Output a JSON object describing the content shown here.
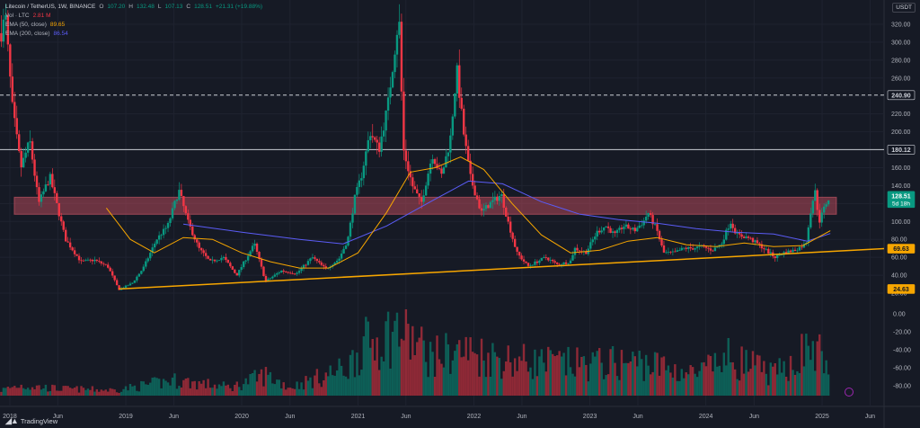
{
  "legend": {
    "title": "Litecoin / TetherUS, 1W, BINANCE",
    "o_key": "O",
    "o_val": "107.20",
    "h_key": "H",
    "h_val": "132.48",
    "l_key": "L",
    "l_val": "107.13",
    "c_key": "C",
    "c_val": "128.51",
    "change": "+21.31 (+19.88%)",
    "vol_label": "Vol · LTC",
    "vol_val": "2.81 M",
    "ema50_label": "EMA (50, close)",
    "ema50_val": "89.65",
    "ema200_label": "EMA (200, close)",
    "ema200_val": "86.54"
  },
  "currency": "USDT",
  "branding": {
    "logo": "TradingView"
  },
  "colors": {
    "background": "#161a25",
    "up": "#089981",
    "down": "#f23645",
    "ema50": "#f7a600",
    "ema200": "#5b5cf6",
    "trendline": "#f7a600",
    "zone": "#b2485a",
    "grid": "#1f2330",
    "axis_text": "#b2b5be"
  },
  "chart_data": {
    "type": "candlestick",
    "symbol": "LTCUSDT",
    "interval": "1W",
    "price_axis": {
      "ticks": [
        320,
        300,
        280,
        260,
        240,
        220,
        200,
        180,
        160,
        140,
        120,
        100,
        80,
        60,
        40,
        20
      ],
      "tick_labels": [
        "320.00",
        "300.00",
        "280.00",
        "260.00",
        "240.00",
        "220.00",
        "200.00",
        "180.00",
        "160.00",
        "140.00",
        "120.00",
        "100.00",
        "80.00",
        "60.00",
        "40.00",
        "20.00"
      ],
      "range": [
        10,
        335
      ],
      "labels": [
        {
          "value": 240.9,
          "text": "240.90",
          "style": "dark"
        },
        {
          "value": 180.12,
          "text": "180.12",
          "style": "dark"
        },
        {
          "value": 128.51,
          "text": "128.51",
          "sub": "5d 18h",
          "style": "green"
        },
        {
          "value": 69.63,
          "text": "69.63",
          "style": "orange"
        },
        {
          "value": 24.63,
          "text": "24.63",
          "style": "orange"
        }
      ]
    },
    "volume_axis": {
      "ticks": [
        0,
        -20,
        -40,
        -60,
        -80
      ],
      "tick_labels": [
        "0.00",
        "-20.00",
        "-40.00",
        "-60.00",
        "-80.00"
      ],
      "note": "volume panel scale as printed"
    },
    "time_axis": {
      "labels": [
        "2018",
        "Jun",
        "2019",
        "Jun",
        "2020",
        "Jun",
        "2021",
        "Jun",
        "2022",
        "Jun",
        "2023",
        "Jun",
        "2024",
        "Jun",
        "2025",
        "Jun"
      ],
      "dates": [
        "2018-01-01",
        "2018-06-01",
        "2019-01-01",
        "2019-06-01",
        "2020-01-01",
        "2020-06-01",
        "2021-01-01",
        "2021-06-01",
        "2022-01-01",
        "2022-06-01",
        "2023-01-01",
        "2023-06-01",
        "2024-01-01",
        "2024-06-01",
        "2025-01-01",
        "2025-06-01"
      ],
      "range": [
        "2017-12-01",
        "2025-07-15"
      ]
    },
    "horizontal_lines": [
      {
        "value": 240.9,
        "style": "dashed"
      },
      {
        "value": 180.12,
        "style": "solid"
      }
    ],
    "resistance_zone": {
      "from": 108,
      "to": 127,
      "start": "2018-01-15",
      "end": "2025-02-15"
    },
    "trendline": {
      "from": {
        "date": "2018-12-10",
        "value": 24.63
      },
      "to": {
        "date": "2025-02-15",
        "value": 69.63
      }
    },
    "price_path": [
      [
        "2017-12-05",
        310
      ],
      [
        "2017-12-18",
        330
      ],
      [
        "2018-01-08",
        230
      ],
      [
        "2018-02-05",
        160
      ],
      [
        "2018-03-05",
        190
      ],
      [
        "2018-04-02",
        120
      ],
      [
        "2018-05-07",
        150
      ],
      [
        "2018-06-25",
        80
      ],
      [
        "2018-08-13",
        55
      ],
      [
        "2018-09-24",
        57
      ],
      [
        "2018-11-05",
        50
      ],
      [
        "2018-12-10",
        24
      ],
      [
        "2019-01-21",
        31
      ],
      [
        "2019-02-25",
        48
      ],
      [
        "2019-04-08",
        80
      ],
      [
        "2019-05-13",
        95
      ],
      [
        "2019-06-17",
        135
      ],
      [
        "2019-07-15",
        100
      ],
      [
        "2019-08-19",
        70
      ],
      [
        "2019-09-23",
        55
      ],
      [
        "2019-11-04",
        60
      ],
      [
        "2019-12-16",
        40
      ],
      [
        "2020-02-10",
        75
      ],
      [
        "2020-03-16",
        33
      ],
      [
        "2020-05-04",
        45
      ],
      [
        "2020-06-22",
        42
      ],
      [
        "2020-08-10",
        60
      ],
      [
        "2020-09-21",
        47
      ],
      [
        "2020-11-02",
        58
      ],
      [
        "2020-11-30",
        80
      ],
      [
        "2020-12-21",
        125
      ],
      [
        "2021-01-11",
        150
      ],
      [
        "2021-02-08",
        200
      ],
      [
        "2021-03-08",
        180
      ],
      [
        "2021-04-05",
        230
      ],
      [
        "2021-05-10",
        330
      ],
      [
        "2021-05-24",
        180
      ],
      [
        "2021-06-21",
        140
      ],
      [
        "2021-07-19",
        120
      ],
      [
        "2021-08-23",
        175
      ],
      [
        "2021-09-20",
        150
      ],
      [
        "2021-10-18",
        190
      ],
      [
        "2021-11-08",
        270
      ],
      [
        "2021-11-29",
        200
      ],
      [
        "2021-12-20",
        150
      ],
      [
        "2022-01-24",
        110
      ],
      [
        "2022-02-21",
        120
      ],
      [
        "2022-03-28",
        130
      ],
      [
        "2022-04-18",
        100
      ],
      [
        "2022-05-16",
        65
      ],
      [
        "2022-06-20",
        50
      ],
      [
        "2022-07-18",
        55
      ],
      [
        "2022-08-15",
        60
      ],
      [
        "2022-09-19",
        52
      ],
      [
        "2022-10-31",
        55
      ],
      [
        "2022-11-14",
        70
      ],
      [
        "2022-12-19",
        65
      ],
      [
        "2023-01-23",
        88
      ],
      [
        "2023-02-20",
        95
      ],
      [
        "2023-03-20",
        85
      ],
      [
        "2023-04-17",
        95
      ],
      [
        "2023-05-22",
        90
      ],
      [
        "2023-06-19",
        100
      ],
      [
        "2023-07-03",
        110
      ],
      [
        "2023-07-31",
        90
      ],
      [
        "2023-08-21",
        65
      ],
      [
        "2023-09-25",
        65
      ],
      [
        "2023-10-23",
        70
      ],
      [
        "2023-11-20",
        70
      ],
      [
        "2023-12-18",
        72
      ],
      [
        "2024-01-22",
        68
      ],
      [
        "2024-02-19",
        75
      ],
      [
        "2024-03-18",
        100
      ],
      [
        "2024-04-08",
        85
      ],
      [
        "2024-05-13",
        82
      ],
      [
        "2024-06-24",
        72
      ],
      [
        "2024-08-05",
        60
      ],
      [
        "2024-09-02",
        65
      ],
      [
        "2024-10-07",
        68
      ],
      [
        "2024-11-11",
        75
      ],
      [
        "2024-11-25",
        110
      ],
      [
        "2024-12-09",
        135
      ],
      [
        "2024-12-23",
        100
      ],
      [
        "2025-01-13",
        120
      ],
      [
        "2025-01-27",
        128.51
      ]
    ],
    "ema50_path": [
      [
        "2018-11-01",
        115
      ],
      [
        "2019-01-15",
        80
      ],
      [
        "2019-04-01",
        65
      ],
      [
        "2019-07-01",
        82
      ],
      [
        "2019-10-01",
        80
      ],
      [
        "2020-01-01",
        65
      ],
      [
        "2020-04-01",
        55
      ],
      [
        "2020-07-01",
        48
      ],
      [
        "2020-10-01",
        48
      ],
      [
        "2021-01-01",
        65
      ],
      [
        "2021-04-01",
        110
      ],
      [
        "2021-06-15",
        155
      ],
      [
        "2021-09-01",
        160
      ],
      [
        "2021-11-20",
        172
      ],
      [
        "2022-02-01",
        158
      ],
      [
        "2022-05-01",
        120
      ],
      [
        "2022-08-01",
        85
      ],
      [
        "2022-11-01",
        65
      ],
      [
        "2023-02-01",
        68
      ],
      [
        "2023-05-01",
        78
      ],
      [
        "2023-08-01",
        82
      ],
      [
        "2023-11-01",
        74
      ],
      [
        "2024-02-01",
        72
      ],
      [
        "2024-05-01",
        76
      ],
      [
        "2024-08-01",
        72
      ],
      [
        "2024-11-01",
        73
      ],
      [
        "2025-01-27",
        89.65
      ]
    ],
    "ema200_path": [
      [
        "2019-07-01",
        97
      ],
      [
        "2020-01-01",
        88
      ],
      [
        "2020-07-01",
        80
      ],
      [
        "2020-11-15",
        75
      ],
      [
        "2021-04-01",
        95
      ],
      [
        "2021-09-01",
        125
      ],
      [
        "2021-12-15",
        145
      ],
      [
        "2022-04-01",
        142
      ],
      [
        "2022-08-01",
        122
      ],
      [
        "2022-12-01",
        108
      ],
      [
        "2023-04-01",
        102
      ],
      [
        "2023-08-01",
        98
      ],
      [
        "2023-12-01",
        92
      ],
      [
        "2024-04-01",
        88
      ],
      [
        "2024-08-01",
        86
      ],
      [
        "2024-11-15",
        78
      ],
      [
        "2025-01-27",
        86.54
      ]
    ],
    "volume_path": [
      [
        "2017-12-05",
        8
      ],
      [
        "2018-02-01",
        15
      ],
      [
        "2018-06-01",
        10
      ],
      [
        "2018-12-01",
        8
      ],
      [
        "2019-06-01",
        22
      ],
      [
        "2019-12-01",
        12
      ],
      [
        "2020-03-16",
        30
      ],
      [
        "2020-06-01",
        12
      ],
      [
        "2020-11-30",
        40
      ],
      [
        "2021-01-11",
        70
      ],
      [
        "2021-05-10",
        95
      ],
      [
        "2021-08-23",
        55
      ],
      [
        "2021-11-08",
        65
      ],
      [
        "2022-05-16",
        50
      ],
      [
        "2022-11-14",
        45
      ],
      [
        "2023-06-19",
        48
      ],
      [
        "2023-12-01",
        30
      ],
      [
        "2024-03-18",
        55
      ],
      [
        "2024-08-05",
        30
      ],
      [
        "2024-11-25",
        70
      ],
      [
        "2025-01-27",
        45
      ]
    ]
  }
}
